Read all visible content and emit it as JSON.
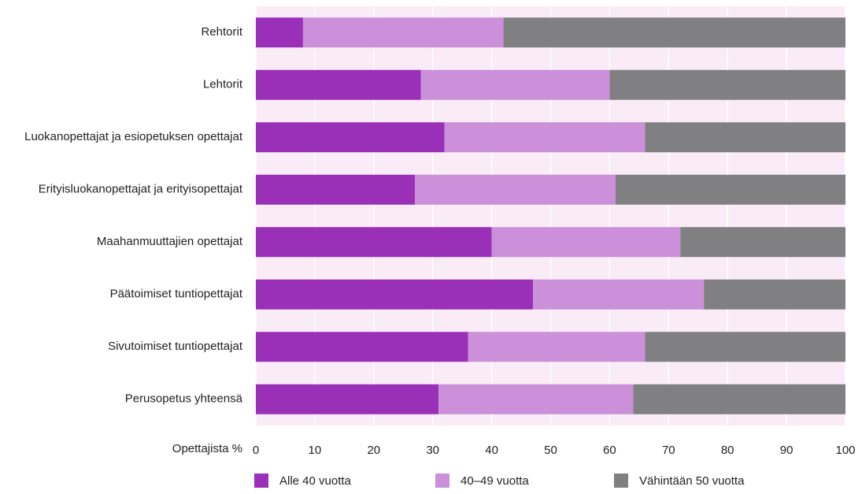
{
  "chart_data": {
    "type": "stacked_barh",
    "categories": [
      "Rehtorit",
      "Lehtorit",
      "Luokanopettajat ja esiopetuksen opettajat",
      "Erityisluokanopettajat ja erityisopettajat",
      "Maahanmuuttajien opettajat",
      "Päätoimiset tuntiopettajat",
      "Sivutoimiset tuntiopettajat",
      "Perusopetus yhteensä"
    ],
    "series": [
      {
        "name": "Alle 40 vuotta",
        "color": "#9a2fb8",
        "values": [
          8,
          28,
          32,
          27,
          40,
          47,
          36,
          31
        ]
      },
      {
        "name": "40–49 vuotta",
        "color": "#cc8fd9",
        "values": [
          34,
          32,
          34,
          34,
          32,
          29,
          30,
          33
        ]
      },
      {
        "name": "Vähintään 50 vuotta",
        "color": "#808083",
        "values": [
          58,
          40,
          34,
          39,
          28,
          24,
          34,
          36
        ]
      }
    ],
    "x_label": "Opettajista %",
    "xlim": [
      0,
      100
    ],
    "xticks": [
      0,
      10,
      20,
      30,
      40,
      50,
      60,
      70,
      80,
      90,
      100
    ],
    "grid": true
  }
}
